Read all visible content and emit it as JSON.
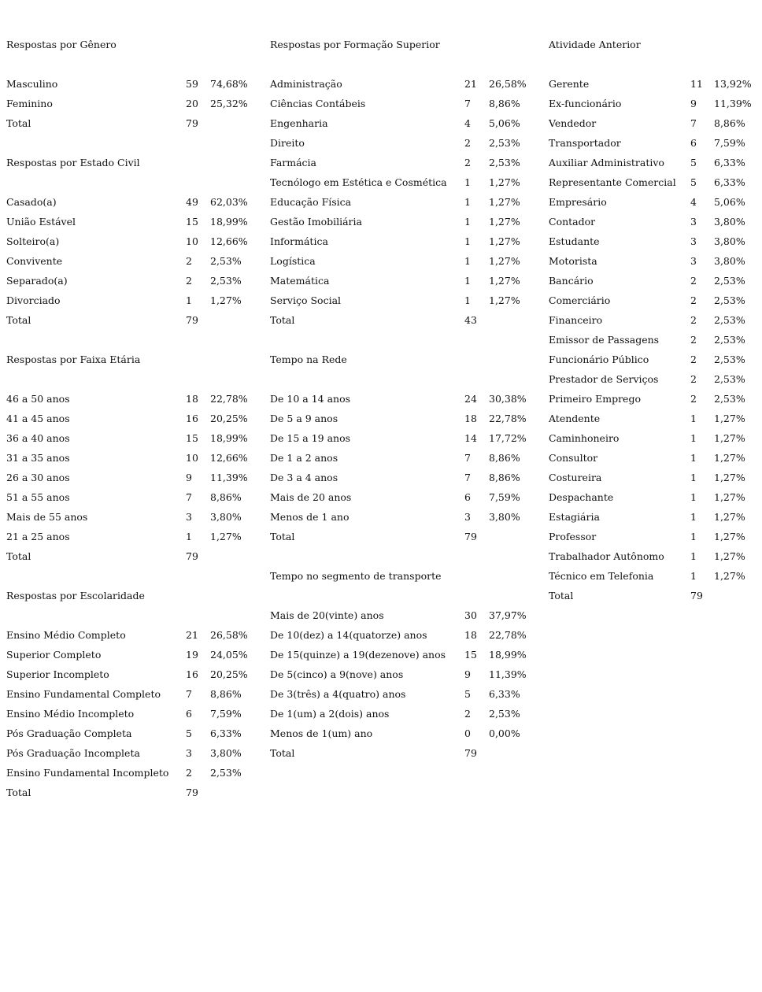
{
  "columns": [
    [
      {
        "title": "Respostas por Gênero",
        "rows": [
          [
            "Masculino",
            "59",
            "74,68%"
          ],
          [
            "Feminino",
            "20",
            "25,32%"
          ]
        ],
        "total": [
          "Total",
          "79"
        ]
      },
      {
        "title": "Respostas por Estado Civil",
        "rows": [
          [
            "Casado(a)",
            "49",
            "62,03%"
          ],
          [
            "União Estável",
            "15",
            "18,99%"
          ],
          [
            "Solteiro(a)",
            "10",
            "12,66%"
          ],
          [
            "Convivente",
            "2",
            "2,53%"
          ],
          [
            "Separado(a)",
            "2",
            "2,53%"
          ],
          [
            "Divorciado",
            "1",
            "1,27%"
          ]
        ],
        "total": [
          "Total",
          "79"
        ]
      },
      {
        "title": "Respostas por Faixa Etária",
        "rows": [
          [
            "46 a 50 anos",
            "18",
            "22,78%"
          ],
          [
            "41 a 45 anos",
            "16",
            "20,25%"
          ],
          [
            "36 a 40 anos",
            "15",
            "18,99%"
          ],
          [
            "31 a 35 anos",
            "10",
            "12,66%"
          ],
          [
            "26 a 30 anos",
            "9",
            "11,39%"
          ],
          [
            "51 a 55 anos",
            "7",
            "8,86%"
          ],
          [
            "Mais de 55 anos",
            "3",
            "3,80%"
          ],
          [
            "21 a 25 anos",
            "1",
            "1,27%"
          ]
        ],
        "total": [
          "Total",
          "79"
        ]
      },
      {
        "title": "Respostas por Escolaridade",
        "rows": [
          [
            "Ensino Médio Completo",
            "21",
            "26,58%"
          ],
          [
            "Superior Completo",
            "19",
            "24,05%"
          ],
          [
            "Superior Incompleto",
            "16",
            "20,25%"
          ],
          [
            "Ensino Fundamental Completo",
            "7",
            "8,86%"
          ],
          [
            "Ensino Médio Incompleto",
            "6",
            "7,59%"
          ],
          [
            "Pós Graduação Completa",
            "5",
            "6,33%"
          ],
          [
            "Pós Graduação Incompleta",
            "3",
            "3,80%"
          ],
          [
            "Ensino Fundamental Incompleto",
            "2",
            "2,53%"
          ]
        ],
        "total": [
          "Total",
          "79"
        ]
      }
    ],
    [
      {
        "title": "Respostas por Formação Superior",
        "rows": [
          [
            "Administração",
            "21",
            "26,58%"
          ],
          [
            "Ciências Contábeis",
            "7",
            "8,86%"
          ],
          [
            "Engenharia",
            "4",
            "5,06%"
          ],
          [
            "Direito",
            "2",
            "2,53%"
          ],
          [
            "Farmácia",
            "2",
            "2,53%"
          ],
          [
            "Tecnólogo em Estética e Cosmética",
            "1",
            "1,27%"
          ],
          [
            "Educação Física",
            "1",
            "1,27%"
          ],
          [
            "Gestão Imobiliária",
            "1",
            "1,27%"
          ],
          [
            "Informática",
            "1",
            "1,27%"
          ],
          [
            "Logística",
            "1",
            "1,27%"
          ],
          [
            "Matemática",
            "1",
            "1,27%"
          ],
          [
            "Serviço Social",
            "1",
            "1,27%"
          ]
        ],
        "total": [
          "Total",
          "43"
        ]
      },
      {
        "title": "Tempo na Rede",
        "rows": [
          [
            "De 10 a 14 anos",
            "24",
            "30,38%"
          ],
          [
            "De 5 a 9 anos",
            "18",
            "22,78%"
          ],
          [
            "De 15 a 19 anos",
            "14",
            "17,72%"
          ],
          [
            "De 1 a 2 anos",
            "7",
            "8,86%"
          ],
          [
            "De 3 a 4 anos",
            "7",
            "8,86%"
          ],
          [
            "Mais de 20 anos",
            "6",
            "7,59%"
          ],
          [
            "Menos de 1 ano",
            "3",
            "3,80%"
          ]
        ],
        "total": [
          "Total",
          "79"
        ]
      },
      {
        "title": "Tempo no segmento de transporte",
        "rows": [
          [
            "Mais de 20(vinte) anos",
            "30",
            "37,97%"
          ],
          [
            "De 10(dez) a 14(quatorze) anos",
            "18",
            "22,78%"
          ],
          [
            "De 15(quinze) a 19(dezenove) anos",
            "15",
            "18,99%"
          ],
          [
            "De 5(cinco) a 9(nove) anos",
            "9",
            "11,39%"
          ],
          [
            "De 3(três) a 4(quatro) anos",
            "5",
            "6,33%"
          ],
          [
            "De 1(um) a 2(dois) anos",
            "2",
            "2,53%"
          ],
          [
            "Menos de 1(um) ano",
            "0",
            "0,00%"
          ]
        ],
        "total": [
          "Total",
          "79"
        ]
      }
    ],
    [
      {
        "title": "Atividade Anterior",
        "rows": [
          [
            "Gerente",
            "11",
            "13,92%"
          ],
          [
            "Ex-funcionário",
            "9",
            "11,39%"
          ],
          [
            "Vendedor",
            "7",
            "8,86%"
          ],
          [
            "Transportador",
            "6",
            "7,59%"
          ],
          [
            "Auxiliar Administrativo",
            "5",
            "6,33%"
          ],
          [
            "Representante Comercial",
            "5",
            "6,33%"
          ],
          [
            "Empresário",
            "4",
            "5,06%"
          ],
          [
            "Contador",
            "3",
            "3,80%"
          ],
          [
            "Estudante",
            "3",
            "3,80%"
          ],
          [
            "Motorista",
            "3",
            "3,80%"
          ],
          [
            "Bancário",
            "2",
            "2,53%"
          ],
          [
            "Comerciário",
            "2",
            "2,53%"
          ],
          [
            "Financeiro",
            "2",
            "2,53%"
          ],
          [
            "Emissor de Passagens",
            "2",
            "2,53%"
          ],
          [
            "Funcionário Público",
            "2",
            "2,53%"
          ],
          [
            "Prestador de Serviços",
            "2",
            "2,53%"
          ],
          [
            "Primeiro Emprego",
            "2",
            "2,53%"
          ],
          [
            "Atendente",
            "1",
            "1,27%"
          ],
          [
            "Caminhoneiro",
            "1",
            "1,27%"
          ],
          [
            "Consultor",
            "1",
            "1,27%"
          ],
          [
            "Costureira",
            "1",
            "1,27%"
          ],
          [
            "Despachante",
            "1",
            "1,27%"
          ],
          [
            "Estagiária",
            "1",
            "1,27%"
          ],
          [
            "Professor",
            "1",
            "1,27%"
          ],
          [
            "Trabalhador Autônomo",
            "1",
            "1,27%"
          ],
          [
            "Técnico em Telefonia",
            "1",
            "1,27%"
          ]
        ],
        "total": [
          "Total",
          "79"
        ]
      }
    ]
  ]
}
